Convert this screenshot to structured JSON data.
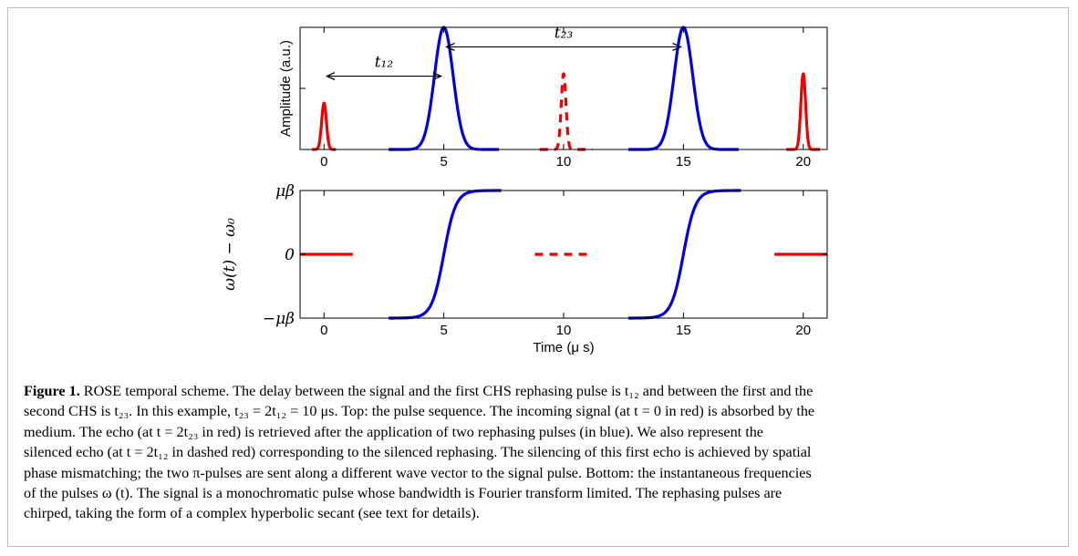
{
  "figure": {
    "label": "Figure 1.",
    "caption_lines": [
      "ROSE temporal scheme. The delay between the signal and the first CHS rephasing pulse is t₁₂ and between the first and the",
      "second CHS is t₂₃. In this example, t₂₃ = 2t₁₂ = 10 μs. Top: the pulse sequence. The incoming signal (at t = 0 in red) is absorbed by the",
      "medium. The echo (at t = 2t₂₃ in red) is retrieved after the application of two rephasing pulses (in blue). We also represent the",
      "silenced echo (at t = 2t₁₂ in dashed red) corresponding to the silenced rephasing. The silencing of this first echo is achieved by spatial",
      "phase mismatching; the two π-pulses are sent along a different wave vector to the signal pulse. Bottom: the instantaneous frequencies",
      "of the pulses ω (t). The signal is a monochromatic pulse whose bandwidth is Fourier transform limited. The rephasing pulses are",
      "chirped, taking the form of a complex hyperbolic secant (see text for details)."
    ]
  },
  "chart_data": [
    {
      "type": "line",
      "panel": "top",
      "title": "",
      "xlabel": "",
      "ylabel": "Amplitude (a.u.)",
      "xlim": [
        -1,
        21
      ],
      "ylim": [
        0,
        1
      ],
      "x_ticks": [
        "0",
        "5",
        "10",
        "15",
        "20"
      ],
      "x_tick_values": [
        0,
        5,
        10,
        15,
        20
      ],
      "y_ticks": [],
      "annotations": [
        {
          "text": "t₁₂",
          "from": 0,
          "to": 5,
          "y": 0.6
        },
        {
          "text": "t₂₃",
          "from": 5,
          "to": 15,
          "y": 0.84
        }
      ],
      "series": [
        {
          "name": "",
          "color": "#ee0000",
          "style": "solid",
          "kind": "gaussian",
          "center": 0,
          "width": 0.14,
          "amplitude": 0.38,
          "range": [
            -0.5,
            0.5
          ]
        },
        {
          "name": "",
          "color": "#0000dd",
          "style": "solid",
          "kind": "gaussian",
          "center": 5,
          "width": 0.55,
          "amplitude": 1.0,
          "range": [
            2.7,
            7.3
          ]
        },
        {
          "name": "",
          "color": "#ee0000",
          "style": "dashed",
          "kind": "gaussian",
          "center": 10,
          "width": 0.14,
          "amplitude": 0.62,
          "range": [
            9.0,
            11.2
          ]
        },
        {
          "name": "",
          "color": "#0000dd",
          "style": "solid",
          "kind": "gaussian",
          "center": 15,
          "width": 0.55,
          "amplitude": 1.0,
          "range": [
            12.7,
            17.3
          ]
        },
        {
          "name": "",
          "color": "#ee0000",
          "style": "solid",
          "kind": "gaussian",
          "center": 20,
          "width": 0.14,
          "amplitude": 0.62,
          "range": [
            19.3,
            20.7
          ]
        }
      ]
    },
    {
      "type": "line",
      "panel": "bottom",
      "title": "",
      "xlabel": "Time (μ s)",
      "ylabel": "ω(t) − ω₀",
      "xlim": [
        -1,
        21
      ],
      "ylim": [
        -1,
        1
      ],
      "x_ticks": [
        "0",
        "5",
        "10",
        "15",
        "20"
      ],
      "x_tick_values": [
        0,
        5,
        10,
        15,
        20
      ],
      "y_ticks": [
        "−μβ",
        "0",
        "μβ"
      ],
      "y_tick_values": [
        -1,
        0,
        1
      ],
      "series": [
        {
          "name": "",
          "color": "#ee0000",
          "style": "solid",
          "kind": "constant",
          "value": 0,
          "range": [
            -1,
            1.2
          ]
        },
        {
          "name": "",
          "color": "#0000dd",
          "style": "solid",
          "kind": "tanh",
          "center": 5,
          "width": 0.5,
          "range": [
            2.7,
            7.4
          ]
        },
        {
          "name": "",
          "color": "#ee0000",
          "style": "dashed",
          "kind": "constant",
          "value": 0,
          "range": [
            8.8,
            11.2
          ]
        },
        {
          "name": "",
          "color": "#0000dd",
          "style": "solid",
          "kind": "tanh",
          "center": 15,
          "width": 0.5,
          "range": [
            12.7,
            17.4
          ]
        },
        {
          "name": "",
          "color": "#ee0000",
          "style": "solid",
          "kind": "constant",
          "value": 0,
          "range": [
            18.8,
            21
          ]
        }
      ]
    }
  ]
}
